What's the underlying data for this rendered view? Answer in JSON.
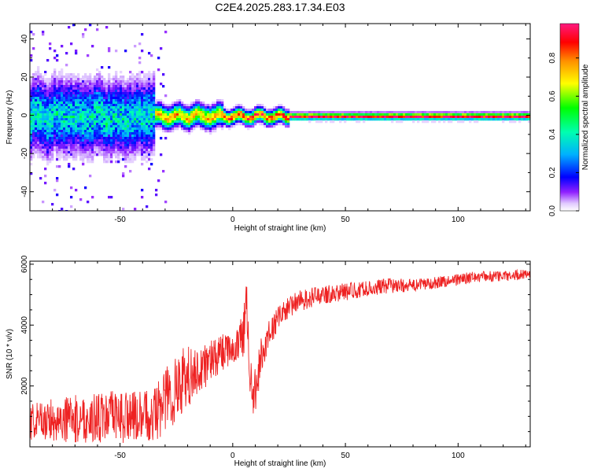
{
  "title": "C2E4.2025.283.17.34.E03",
  "chart_data": [
    {
      "type": "heatmap",
      "xlabel": "Height of straight line (km)",
      "ylabel": "Frequency (Hz)",
      "xlim": [
        -90,
        132
      ],
      "ylim": [
        -50,
        48
      ],
      "xticks": [
        -50,
        0,
        50,
        100
      ],
      "yticks": [
        -40,
        -20,
        0,
        20,
        40
      ],
      "colorbar": {
        "label": "Normalized spectral amplitude",
        "range": [
          0,
          0.98
        ],
        "ticks": [
          0.0,
          0.2,
          0.4,
          0.6,
          0.8
        ],
        "tick_labels": [
          "0.0",
          "0.2",
          "0.4",
          "0.6",
          "0.8"
        ],
        "colormap": "rainbow",
        "low_color": "#ffffff",
        "high_color": "#ff1a80"
      },
      "description_segments": [
        {
          "x": [
            -90,
            -35
          ],
          "freq_spread_hz": 10,
          "peak_amplitude": 0.4
        },
        {
          "x": [
            -35,
            -5
          ],
          "freq_spread_hz": 3,
          "peak_amplitude": 0.75
        },
        {
          "x": [
            -5,
            25
          ],
          "freq_spread_hz": 2,
          "peak_amplitude": 0.85
        },
        {
          "x": [
            25,
            132
          ],
          "freq_spread_hz": 1,
          "peak_amplitude": 0.95
        }
      ]
    },
    {
      "type": "line",
      "xlabel": "Height of straight line (km)",
      "ylabel": "SNR (10 * v/v)",
      "xlim": [
        -90,
        132
      ],
      "ylim": [
        0,
        6100
      ],
      "xticks": [
        -50,
        0,
        50,
        100
      ],
      "yticks": [
        2000,
        4000,
        6000
      ],
      "series": [
        {
          "color": "#ee2222",
          "x": [
            -90,
            -80,
            -70,
            -60,
            -50,
            -40,
            -35,
            -30,
            -25,
            -20,
            -15,
            -10,
            -5,
            0,
            3,
            5,
            6,
            7,
            8,
            9,
            10,
            12,
            15,
            20,
            25,
            30,
            40,
            50,
            60,
            70,
            80,
            90,
            100,
            110,
            120,
            132
          ],
          "mean": [
            800,
            900,
            900,
            950,
            1000,
            1000,
            1100,
            1500,
            2000,
            2300,
            2500,
            2800,
            3100,
            3200,
            3400,
            3800,
            5200,
            3000,
            2500,
            1500,
            1800,
            2800,
            3500,
            4200,
            4600,
            4800,
            5000,
            5100,
            5200,
            5300,
            5300,
            5400,
            5500,
            5600,
            5600,
            5700
          ],
          "spread": [
            600,
            700,
            800,
            800,
            900,
            800,
            900,
            1200,
            1300,
            1000,
            800,
            700,
            600,
            500,
            600,
            900,
            900,
            1000,
            900,
            700,
            800,
            700,
            500,
            400,
            350,
            350,
            300,
            300,
            250,
            250,
            200,
            200,
            200,
            180,
            180,
            150
          ]
        }
      ]
    }
  ]
}
